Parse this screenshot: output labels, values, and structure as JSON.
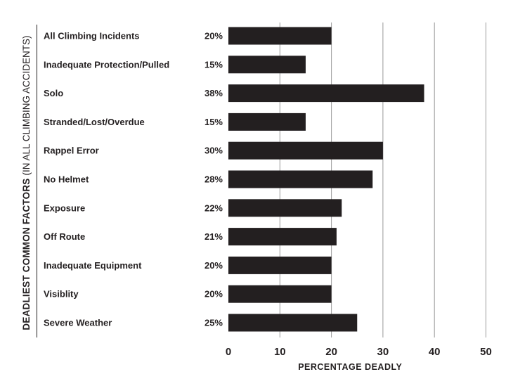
{
  "chart_data": {
    "type": "bar",
    "orientation": "horizontal",
    "categories": [
      "All Climbing Incidents",
      "Inadequate Protection/Pulled",
      "Solo",
      "Stranded/Lost/Overdue",
      "Rappel Error",
      "No Helmet",
      "Exposure",
      "Off Route",
      "Inadequate Equipment",
      "Visiblity",
      "Severe Weather"
    ],
    "values": [
      20,
      15,
      38,
      15,
      30,
      28,
      22,
      21,
      20,
      20,
      25
    ],
    "value_labels": [
      "20%",
      "15%",
      "38%",
      "15%",
      "30%",
      "28%",
      "22%",
      "21%",
      "20%",
      "20%",
      "25%"
    ],
    "xlabel": "PERCENTAGE DEADLY",
    "ylabel_bold": "DEADLIEST COMMON FACTORS",
    "ylabel_normal": "(IN ALL CLIMBING ACCIDENTS)",
    "xlim": [
      0,
      50
    ],
    "xticks": [
      0,
      10,
      20,
      30,
      40,
      50
    ],
    "grid": true,
    "bar_color": "#231f20",
    "grid_color": "#9a9a9a",
    "text_color": "#231f20"
  }
}
